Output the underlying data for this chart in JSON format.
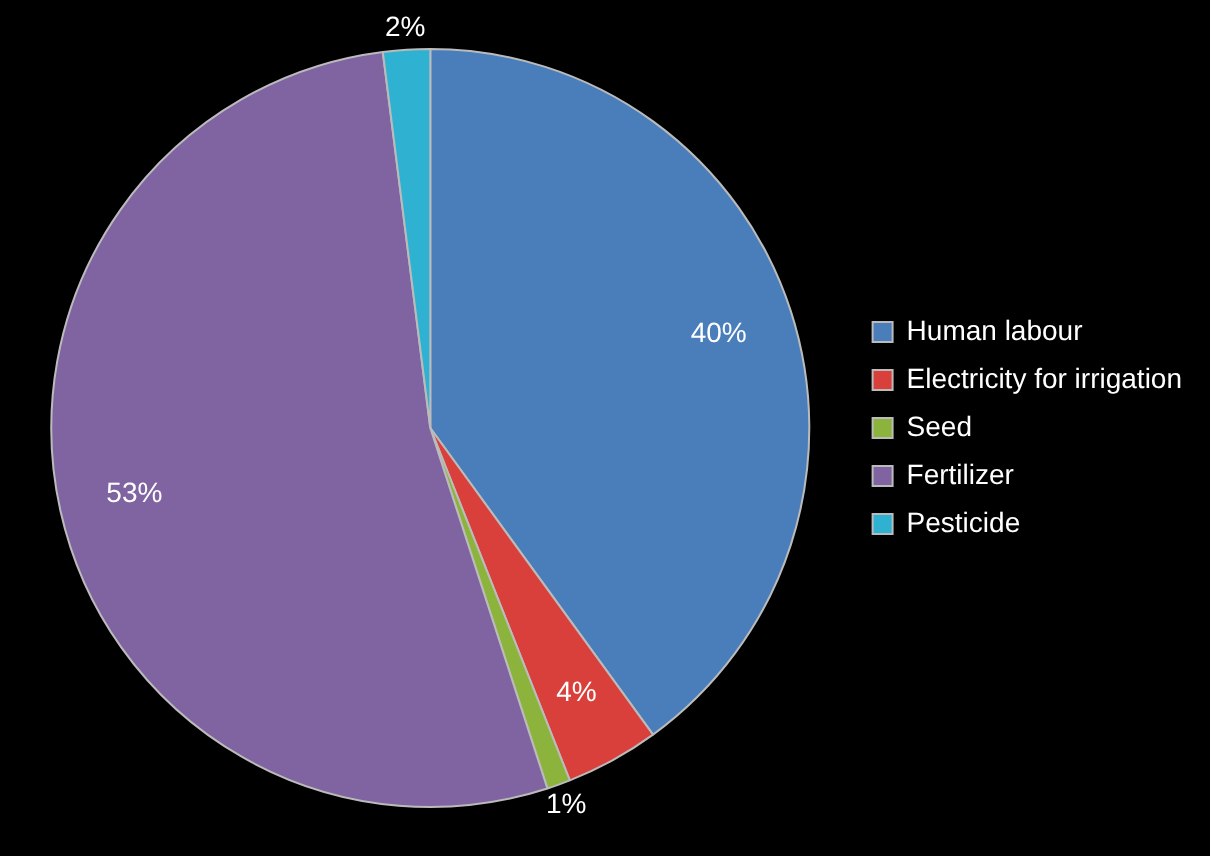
{
  "chart_data": {
    "type": "pie",
    "categories": [
      "Human labour",
      "Electricity for irrigation",
      "Seed",
      "Fertilizer",
      "Pesticide"
    ],
    "values": [
      40,
      4,
      1,
      53,
      2
    ],
    "colors": [
      "#4a7ebb",
      "#d9403b",
      "#8cb43c",
      "#8064a2",
      "#2fb2d2"
    ],
    "value_labels": [
      "40%",
      "4%",
      "1%",
      "53%",
      "2%"
    ],
    "legend": "right"
  }
}
